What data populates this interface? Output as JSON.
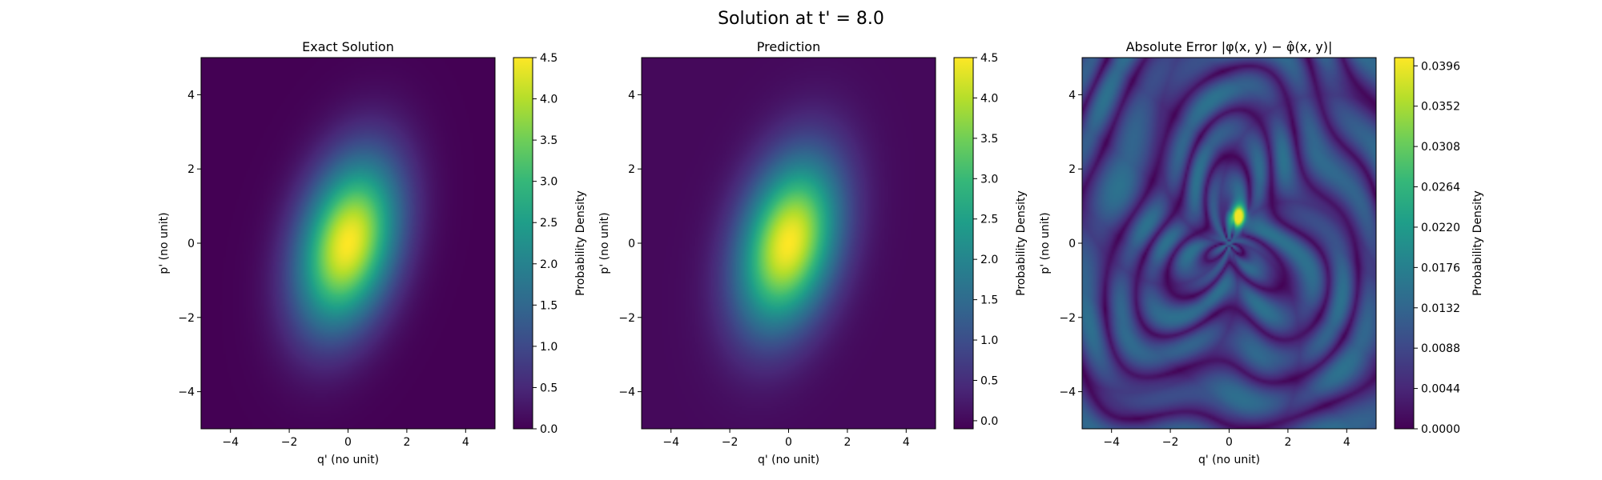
{
  "suptitle": "Solution at t' = 8.0",
  "colors": {
    "viridis": [
      "#440154",
      "#482878",
      "#3e4989",
      "#31688e",
      "#26828e",
      "#1f9e89",
      "#35b779",
      "#6ece58",
      "#b5de2b",
      "#fde725"
    ]
  },
  "chart_data": [
    {
      "type": "heatmap",
      "title": "Exact Solution",
      "xlabel": "q' (no unit)",
      "ylabel": "p' (no unit)",
      "xlim": [
        -5,
        5
      ],
      "ylim": [
        -5,
        5
      ],
      "xticks": [
        -4,
        -2,
        0,
        2,
        4
      ],
      "yticks": [
        -4,
        -2,
        0,
        2,
        4
      ],
      "colorbar": {
        "label": "Probability Density",
        "range": [
          0,
          4.5
        ],
        "ticks": [
          "0.0",
          "0.5",
          "1.0",
          "1.5",
          "2.0",
          "2.5",
          "3.0",
          "3.5",
          "4.0",
          "4.5"
        ]
      },
      "field": {
        "peak": 4.5,
        "center": [
          0,
          0
        ],
        "sigma_x": 1.2,
        "sigma_y": 1.6,
        "correlation": 0.3
      }
    },
    {
      "type": "heatmap",
      "title": "Prediction",
      "xlabel": "q' (no unit)",
      "ylabel": "p' (no unit)",
      "xlim": [
        -5,
        5
      ],
      "ylim": [
        -5,
        5
      ],
      "xticks": [
        -4,
        -2,
        0,
        2,
        4
      ],
      "yticks": [
        -4,
        -2,
        0,
        2,
        4
      ],
      "colorbar": {
        "label": "Probability Density",
        "range": [
          -0.1,
          4.5
        ],
        "ticks": [
          "0.0",
          "0.5",
          "1.0",
          "1.5",
          "2.0",
          "2.5",
          "3.0",
          "3.5",
          "4.0",
          "4.5"
        ]
      },
      "field": {
        "peak": 4.5,
        "center": [
          0,
          0
        ],
        "sigma_x": 1.2,
        "sigma_y": 1.6,
        "correlation": 0.3
      }
    },
    {
      "type": "heatmap",
      "title": "Absolute Error |φ(x, y) − φ̂(x, y)|",
      "xlabel": "q' (no unit)",
      "ylabel": "p' (no unit)",
      "xlim": [
        -5,
        5
      ],
      "ylim": [
        -5,
        5
      ],
      "xticks": [
        -4,
        -2,
        0,
        2,
        4
      ],
      "yticks": [
        -4,
        -2,
        0,
        2,
        4
      ],
      "colorbar": {
        "label": "Probability Density",
        "range": [
          0,
          0.0405
        ],
        "ticks": [
          "0.0000",
          "0.0044",
          "0.0088",
          "0.0132",
          "0.0176",
          "0.0220",
          "0.0264",
          "0.0308",
          "0.0352",
          "0.0396"
        ]
      },
      "field": {
        "peak": 0.0396,
        "peak_location": [
          0.3,
          0.7
        ]
      }
    }
  ]
}
